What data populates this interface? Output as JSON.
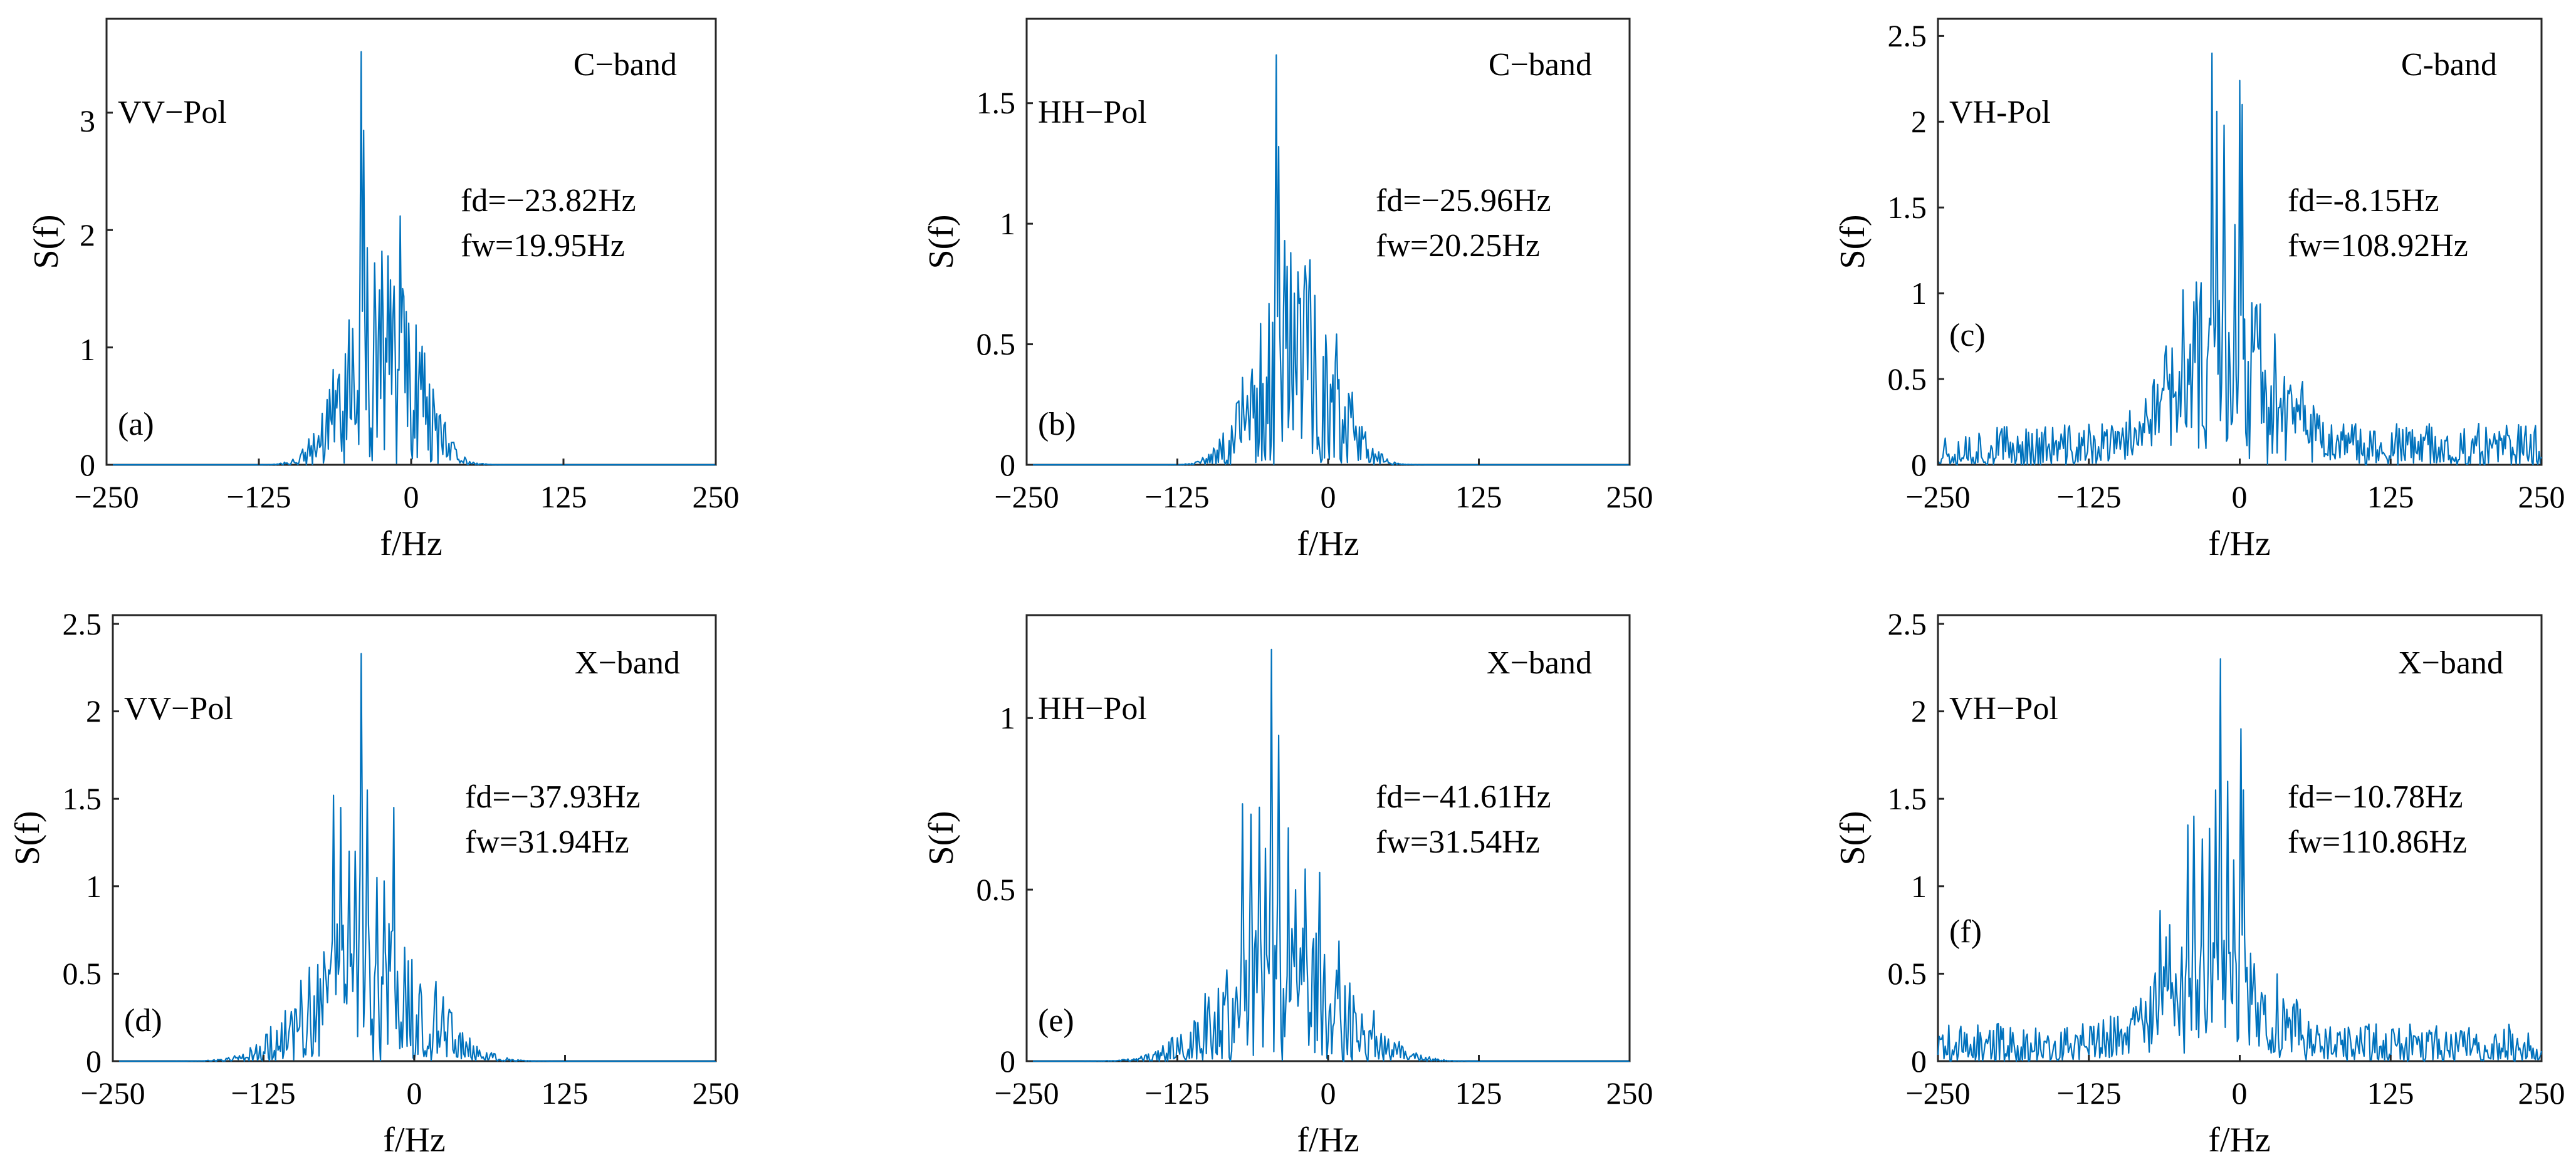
{
  "figure": {
    "series_color": "#0072BD",
    "axis_color": "#262626"
  },
  "chart_data": [
    {
      "type": "line",
      "panel": "(a)",
      "band": "C−band",
      "pol": "VV−Pol",
      "fd": "fd=−23.82Hz",
      "fw": "fw=19.95Hz",
      "xlabel": "f/Hz",
      "ylabel": "S(f)",
      "xlim": [
        -250,
        250
      ],
      "ylim": [
        0,
        3.8
      ],
      "xticks": [
        -250,
        -125,
        0,
        125,
        250
      ],
      "xtick_labels": [
        "−250",
        "−125",
        "0",
        "125",
        "250"
      ],
      "yticks": [
        0,
        1,
        2,
        3
      ],
      "ytick_labels": [
        "0",
        "1",
        "2",
        "3"
      ],
      "spectrum": {
        "seed": 11,
        "noise_floor": 0.0,
        "spread": 45,
        "envelope": 1.25,
        "peaks": [
          [
            -41,
            3.52
          ],
          [
            -39,
            2.85
          ],
          [
            -36,
            1.85
          ],
          [
            -30,
            1.72
          ],
          [
            -24,
            1.82
          ],
          [
            -19,
            1.78
          ],
          [
            -9,
            2.12
          ],
          [
            -2,
            1.05
          ]
        ]
      }
    },
    {
      "type": "line",
      "panel": "(b)",
      "band": "C−band",
      "pol": "HH−Pol",
      "fd": "fd=−25.96Hz",
      "fw": "fw=20.25Hz",
      "xlabel": "f/Hz",
      "ylabel": "S(f)",
      "xlim": [
        -250,
        250
      ],
      "ylim": [
        0,
        1.85
      ],
      "xticks": [
        -250,
        -125,
        0,
        125,
        250
      ],
      "xtick_labels": [
        "−250",
        "−125",
        "0",
        "125",
        "250"
      ],
      "yticks": [
        0,
        0.5,
        1,
        1.5
      ],
      "ytick_labels": [
        "0",
        "0.5",
        "1",
        "1.5"
      ],
      "spectrum": {
        "seed": 23,
        "noise_floor": 0.0,
        "spread": 48,
        "envelope": 0.62,
        "peaks": [
          [
            -43,
            1.7
          ],
          [
            -41,
            1.32
          ],
          [
            -36,
            0.93
          ],
          [
            -31,
            0.88
          ],
          [
            -25,
            0.8
          ],
          [
            -20,
            0.72
          ],
          [
            -15,
            0.85
          ],
          [
            -11,
            0.58
          ]
        ]
      }
    },
    {
      "type": "line",
      "panel": "(c)",
      "band": "C-band",
      "pol": "VH-Pol",
      "fd": "fd=-8.15Hz",
      "fw": "fw=108.92Hz",
      "xlabel": "f/Hz",
      "ylabel": "S(f)",
      "xlim": [
        -250,
        250
      ],
      "ylim": [
        0,
        2.6
      ],
      "xticks": [
        -250,
        -125,
        0,
        125,
        250
      ],
      "xtick_labels": [
        "−250",
        "−125",
        "0",
        "125",
        "250"
      ],
      "yticks": [
        0,
        0.5,
        1,
        1.5,
        2,
        2.5
      ],
      "ytick_labels": [
        "0",
        "0.5",
        "1",
        "1.5",
        "2",
        "2.5"
      ],
      "spectrum": {
        "seed": 37,
        "noise_floor": 0.11,
        "spread": 60,
        "envelope": 0.75,
        "peaks": [
          [
            -23,
            2.4
          ],
          [
            -19,
            2.06
          ],
          [
            -13,
            1.98
          ],
          [
            -4,
            1.4
          ],
          [
            0,
            2.24
          ],
          [
            2,
            2.1
          ],
          [
            -47,
            1.02
          ],
          [
            -38,
            0.95
          ],
          [
            21,
            0.55
          ]
        ]
      }
    },
    {
      "type": "line",
      "panel": "(d)",
      "band": "X−band",
      "pol": "VV−Pol",
      "fd": "fd=−37.93Hz",
      "fw": "fw=31.94Hz",
      "xlabel": "f/Hz",
      "ylabel": "S(f)",
      "xlim": [
        -250,
        250
      ],
      "ylim": [
        0,
        2.55
      ],
      "xticks": [
        -250,
        -125,
        0,
        125,
        250
      ],
      "xtick_labels": [
        "−250",
        "−125",
        "0",
        "125",
        "250"
      ],
      "yticks": [
        0,
        0.5,
        1,
        1.5,
        2,
        2.5
      ],
      "ytick_labels": [
        "0",
        "0.5",
        "1",
        "1.5",
        "2",
        "2.5"
      ],
      "spectrum": {
        "seed": 53,
        "noise_floor": 0.0,
        "spread": 70,
        "envelope": 0.62,
        "peaks": [
          [
            -67,
            1.52
          ],
          [
            -61,
            1.45
          ],
          [
            -54,
            1.2
          ],
          [
            -49,
            1.2
          ],
          [
            -44,
            2.33
          ],
          [
            -39,
            1.55
          ],
          [
            -31,
            1.05
          ],
          [
            -25,
            1.03
          ],
          [
            -17,
            1.45
          ],
          [
            -8,
            0.65
          ]
        ]
      }
    },
    {
      "type": "line",
      "panel": "(e)",
      "band": "X−band",
      "pol": "HH−Pol",
      "fd": "fd=−41.61Hz",
      "fw": "fw=31.54Hz",
      "xlabel": "f/Hz",
      "ylabel": "S(f)",
      "xlim": [
        -250,
        250
      ],
      "ylim": [
        0,
        1.3
      ],
      "xticks": [
        -250,
        -125,
        0,
        125,
        250
      ],
      "xtick_labels": [
        "−250",
        "−125",
        "0",
        "125",
        "250"
      ],
      "yticks": [
        0,
        0.5,
        1
      ],
      "ytick_labels": [
        "0",
        "0.5",
        "1"
      ],
      "spectrum": {
        "seed": 71,
        "noise_floor": 0.0,
        "spread": 75,
        "envelope": 0.3,
        "peaks": [
          [
            -71,
            0.75
          ],
          [
            -64,
            0.72
          ],
          [
            -57,
            0.74
          ],
          [
            -52,
            0.62
          ],
          [
            -47,
            1.2
          ],
          [
            -41,
            0.95
          ],
          [
            -33,
            0.68
          ],
          [
            -27,
            0.5
          ],
          [
            -19,
            0.56
          ],
          [
            -7,
            0.55
          ],
          [
            9,
            0.35
          ]
        ]
      }
    },
    {
      "type": "line",
      "panel": "(f)",
      "band": "X−band",
      "pol": "VH−Pol",
      "fd": "fd=−10.78Hz",
      "fw": "fw=110.86Hz",
      "xlabel": "f/Hz",
      "ylabel": "S(f)",
      "xlim": [
        -250,
        250
      ],
      "ylim": [
        0,
        2.55
      ],
      "xticks": [
        -250,
        -125,
        0,
        125,
        250
      ],
      "xtick_labels": [
        "−250",
        "−125",
        "0",
        "125",
        "250"
      ],
      "yticks": [
        0,
        0.5,
        1,
        1.5,
        2,
        2.5
      ],
      "ytick_labels": [
        "0",
        "0.5",
        "1",
        "1.5",
        "2",
        "2.5"
      ],
      "spectrum": {
        "seed": 89,
        "noise_floor": 0.1,
        "spread": 65,
        "envelope": 0.52,
        "peaks": [
          [
            -43,
            1.35
          ],
          [
            -38,
            1.4
          ],
          [
            -31,
            1.27
          ],
          [
            -25,
            1.33
          ],
          [
            -20,
            1.55
          ],
          [
            -16,
            2.3
          ],
          [
            -10,
            1.6
          ],
          [
            -5,
            1.15
          ],
          [
            1,
            1.9
          ],
          [
            3,
            1.55
          ],
          [
            -66,
            0.86
          ],
          [
            -58,
            0.78
          ]
        ]
      }
    }
  ]
}
